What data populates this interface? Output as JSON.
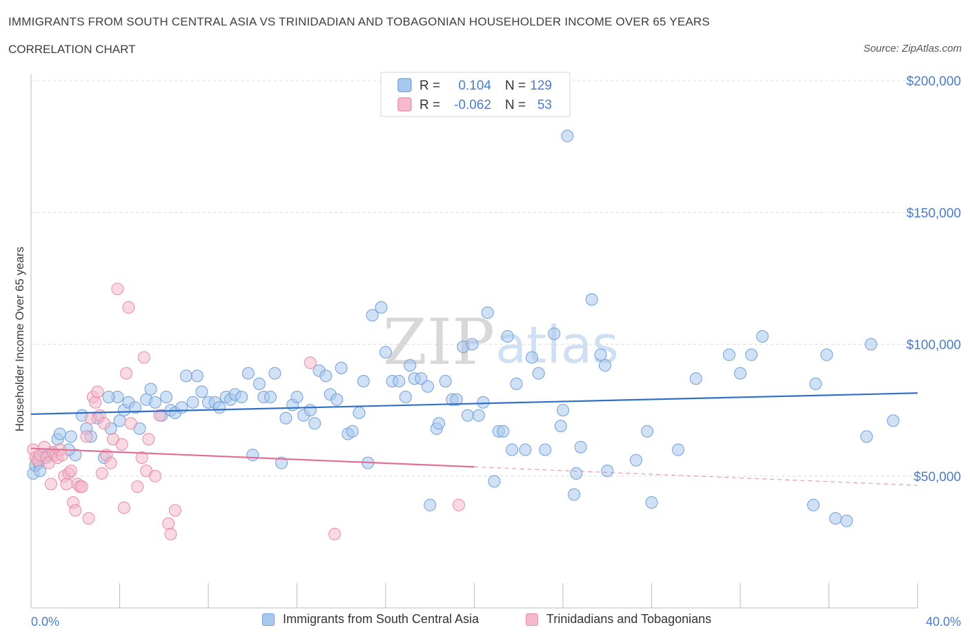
{
  "header": {
    "title": "IMMIGRANTS FROM SOUTH CENTRAL ASIA VS TRINIDADIAN AND TOBAGONIAN HOUSEHOLDER INCOME OVER 65 YEARS",
    "subtitle": "CORRELATION CHART",
    "source": "Source: ZipAtlas.com"
  },
  "watermark": {
    "zip": "ZIP",
    "atlas": "atlas"
  },
  "legend": {
    "r_label": "R =",
    "n_label": "N =",
    "rows": [
      {
        "series": "Immigrants from South Central Asia",
        "r": "0.104",
        "n": "129"
      },
      {
        "series": "Trinidadians and Tobagonians",
        "r": "-0.062",
        "n": "53"
      }
    ]
  },
  "colors": {
    "blue_fill": "#a9c8ee",
    "blue_stroke": "#6f9fd8",
    "blue_line": "#2f6fc8",
    "pink_fill": "#f4b9ca",
    "pink_stroke": "#e88aa6",
    "pink_line": "#e26d96",
    "grid": "#dcdcdc",
    "axis_text": "#4a7cc9"
  },
  "chart_data": {
    "type": "scatter",
    "title": "IMMIGRANTS FROM SOUTH CENTRAL ASIA VS TRINIDADIAN AND TOBAGONIAN HOUSEHOLDER INCOME OVER 65 YEARS",
    "xlabel": "",
    "ylabel": "Householder Income Over 65 years",
    "xlim": [
      0,
      40
    ],
    "ylim": [
      0,
      200000
    ],
    "x_tick_labels": [
      "0.0%",
      "40.0%"
    ],
    "y_ticks": [
      50000,
      100000,
      150000,
      200000
    ],
    "y_tick_labels": [
      "$50,000",
      "$100,000",
      "$150,000",
      "$200,000"
    ],
    "grid": true,
    "legend_position": "top-center",
    "series": [
      {
        "name": "Immigrants from South Central Asia",
        "color": "blue",
        "trend": {
          "x": [
            0,
            40
          ],
          "y": [
            73500,
            81500
          ]
        },
        "points": [
          [
            0.1,
            51000
          ],
          [
            0.2,
            54000
          ],
          [
            0.3,
            56000
          ],
          [
            0.35,
            55000
          ],
          [
            0.5,
            58000
          ],
          [
            0.6,
            57000
          ],
          [
            0.8,
            58000
          ],
          [
            1.0,
            59000
          ],
          [
            1.2,
            64000
          ],
          [
            1.3,
            66000
          ],
          [
            1.8,
            65000
          ],
          [
            2.0,
            58000
          ],
          [
            2.3,
            73000
          ],
          [
            2.5,
            68000
          ],
          [
            2.7,
            65000
          ],
          [
            3.0,
            72000
          ],
          [
            3.3,
            57000
          ],
          [
            3.6,
            68000
          ],
          [
            3.9,
            80000
          ],
          [
            4.0,
            71000
          ],
          [
            4.2,
            75000
          ],
          [
            4.4,
            78000
          ],
          [
            4.7,
            76000
          ],
          [
            4.9,
            68000
          ],
          [
            5.2,
            79000
          ],
          [
            5.4,
            83000
          ],
          [
            5.6,
            78000
          ],
          [
            5.9,
            73000
          ],
          [
            6.1,
            80000
          ],
          [
            6.3,
            75000
          ],
          [
            6.5,
            74000
          ],
          [
            6.8,
            76000
          ],
          [
            7.0,
            88000
          ],
          [
            7.3,
            78000
          ],
          [
            7.5,
            88000
          ],
          [
            7.7,
            82000
          ],
          [
            8.0,
            78000
          ],
          [
            8.3,
            78000
          ],
          [
            8.5,
            76000
          ],
          [
            8.8,
            80000
          ],
          [
            9.0,
            79000
          ],
          [
            9.2,
            81000
          ],
          [
            9.5,
            80000
          ],
          [
            9.8,
            89000
          ],
          [
            10.0,
            58000
          ],
          [
            10.3,
            85000
          ],
          [
            10.5,
            80000
          ],
          [
            10.8,
            80000
          ],
          [
            11.0,
            89000
          ],
          [
            11.3,
            55000
          ],
          [
            11.5,
            72000
          ],
          [
            11.8,
            77000
          ],
          [
            12.0,
            80000
          ],
          [
            12.3,
            73000
          ],
          [
            12.6,
            75000
          ],
          [
            12.8,
            70000
          ],
          [
            13.0,
            90000
          ],
          [
            13.3,
            88000
          ],
          [
            13.5,
            81000
          ],
          [
            13.8,
            79000
          ],
          [
            14.0,
            91000
          ],
          [
            14.3,
            66000
          ],
          [
            14.5,
            67000
          ],
          [
            14.8,
            74000
          ],
          [
            15.0,
            86000
          ],
          [
            15.2,
            55000
          ],
          [
            15.4,
            111000
          ],
          [
            15.8,
            114000
          ],
          [
            16.0,
            97000
          ],
          [
            16.3,
            86000
          ],
          [
            16.6,
            86000
          ],
          [
            16.9,
            80000
          ],
          [
            17.1,
            92000
          ],
          [
            17.3,
            87000
          ],
          [
            17.6,
            87000
          ],
          [
            17.9,
            84000
          ],
          [
            18.0,
            39000
          ],
          [
            18.3,
            68000
          ],
          [
            18.4,
            70000
          ],
          [
            18.7,
            86000
          ],
          [
            19.0,
            79000
          ],
          [
            19.2,
            79000
          ],
          [
            19.5,
            99000
          ],
          [
            19.7,
            73000
          ],
          [
            19.9,
            100000
          ],
          [
            20.2,
            73000
          ],
          [
            20.4,
            78000
          ],
          [
            20.6,
            112000
          ],
          [
            20.9,
            48000
          ],
          [
            21.1,
            67000
          ],
          [
            21.3,
            67000
          ],
          [
            21.5,
            103000
          ],
          [
            21.7,
            60000
          ],
          [
            21.9,
            85000
          ],
          [
            22.3,
            60000
          ],
          [
            22.6,
            95000
          ],
          [
            22.9,
            89000
          ],
          [
            23.2,
            60000
          ],
          [
            23.6,
            104000
          ],
          [
            23.9,
            69000
          ],
          [
            24.0,
            75000
          ],
          [
            24.6,
            51000
          ],
          [
            24.2,
            179000
          ],
          [
            24.8,
            61000
          ],
          [
            24.5,
            43000
          ],
          [
            25.3,
            117000
          ],
          [
            25.7,
            96000
          ],
          [
            25.9,
            92000
          ],
          [
            26.0,
            52000
          ],
          [
            27.3,
            56000
          ],
          [
            27.8,
            67000
          ],
          [
            28.0,
            40000
          ],
          [
            29.2,
            60000
          ],
          [
            30.0,
            87000
          ],
          [
            31.5,
            96000
          ],
          [
            32.0,
            89000
          ],
          [
            32.5,
            96000
          ],
          [
            33.0,
            103000
          ],
          [
            35.3,
            39000
          ],
          [
            35.4,
            85000
          ],
          [
            35.9,
            96000
          ],
          [
            36.3,
            34000
          ],
          [
            36.8,
            33000
          ],
          [
            37.7,
            65000
          ],
          [
            37.9,
            100000
          ],
          [
            38.9,
            71000
          ],
          [
            0.4,
            52000
          ],
          [
            1.7,
            60000
          ],
          [
            3.5,
            80000
          ]
        ]
      },
      {
        "name": "Trinidadians and Tobagonians",
        "color": "pink",
        "trend": {
          "x": [
            0,
            20
          ],
          "y": [
            60500,
            53500
          ],
          "dashed_extension": {
            "x": [
              20,
              40
            ],
            "y": [
              53500,
              46500
            ]
          }
        },
        "points": [
          [
            0.1,
            60000
          ],
          [
            0.2,
            57000
          ],
          [
            0.3,
            56000
          ],
          [
            0.4,
            58000
          ],
          [
            0.6,
            61000
          ],
          [
            0.7,
            57000
          ],
          [
            0.8,
            55000
          ],
          [
            0.9,
            47000
          ],
          [
            1.0,
            59000
          ],
          [
            1.1,
            58000
          ],
          [
            1.2,
            57000
          ],
          [
            1.3,
            60000
          ],
          [
            1.4,
            58000
          ],
          [
            1.5,
            50000
          ],
          [
            1.6,
            47000
          ],
          [
            1.7,
            51000
          ],
          [
            1.8,
            52000
          ],
          [
            1.9,
            40000
          ],
          [
            2.0,
            37000
          ],
          [
            2.1,
            47000
          ],
          [
            2.2,
            46000
          ],
          [
            2.3,
            46000
          ],
          [
            2.5,
            65000
          ],
          [
            2.6,
            34000
          ],
          [
            2.7,
            72000
          ],
          [
            2.8,
            80000
          ],
          [
            2.9,
            78000
          ],
          [
            3.0,
            82000
          ],
          [
            3.1,
            73000
          ],
          [
            3.2,
            51000
          ],
          [
            3.3,
            70000
          ],
          [
            3.4,
            58000
          ],
          [
            3.6,
            55000
          ],
          [
            3.7,
            64000
          ],
          [
            3.9,
            121000
          ],
          [
            4.1,
            62000
          ],
          [
            4.2,
            38000
          ],
          [
            4.3,
            89000
          ],
          [
            4.4,
            114000
          ],
          [
            4.5,
            70000
          ],
          [
            4.8,
            46000
          ],
          [
            5.0,
            57000
          ],
          [
            5.1,
            95000
          ],
          [
            5.2,
            52000
          ],
          [
            5.3,
            64000
          ],
          [
            5.6,
            50000
          ],
          [
            5.8,
            73000
          ],
          [
            6.2,
            32000
          ],
          [
            6.3,
            28000
          ],
          [
            6.5,
            37000
          ],
          [
            12.6,
            93000
          ],
          [
            13.7,
            28000
          ],
          [
            19.3,
            39000
          ]
        ]
      }
    ]
  }
}
